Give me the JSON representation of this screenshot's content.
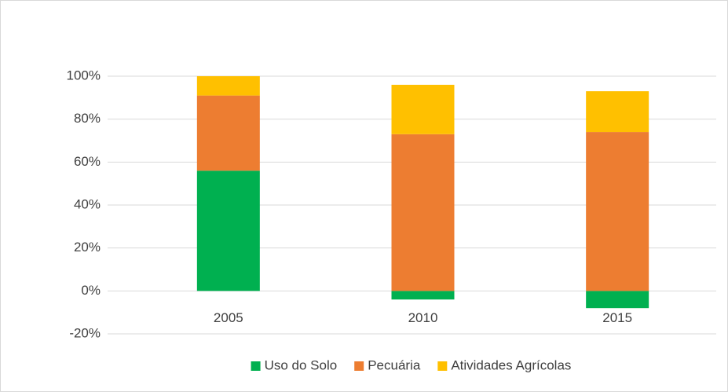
{
  "chart_data": {
    "type": "stacked_bar",
    "categories": [
      "2005",
      "2010",
      "2015"
    ],
    "series": [
      {
        "name": "Uso do Solo",
        "color": "#00b050",
        "values": [
          56,
          -4,
          -8
        ]
      },
      {
        "name": "Pecuária",
        "color": "#ed7d31",
        "values": [
          35,
          73,
          74
        ]
      },
      {
        "name": "Atividades Agrícolas",
        "color": "#ffc000",
        "values": [
          9,
          23,
          19
        ]
      }
    ],
    "ylim": [
      -20,
      100
    ],
    "yticks": [
      {
        "value": -20,
        "label": "-20%"
      },
      {
        "value": 0,
        "label": "0%"
      },
      {
        "value": 20,
        "label": "20%"
      },
      {
        "value": 40,
        "label": "40%"
      },
      {
        "value": 60,
        "label": "60%"
      },
      {
        "value": 80,
        "label": "80%"
      },
      {
        "value": 100,
        "label": "100%"
      }
    ],
    "grid": true,
    "legend": "bottom"
  }
}
